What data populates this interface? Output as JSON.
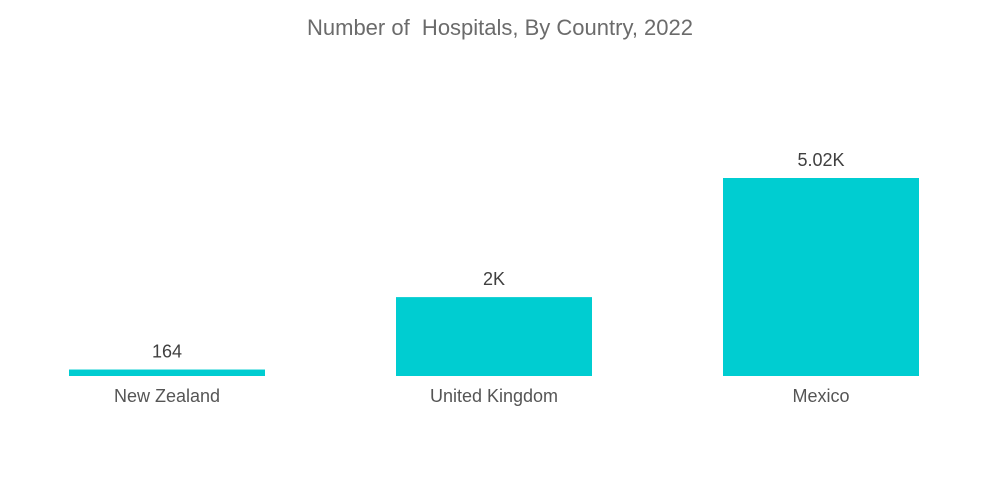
{
  "chart_data": {
    "type": "bar",
    "title": "Number of  Hospitals, By Country, 2022",
    "categories": [
      "New Zealand",
      "United Kingdom",
      "Mexico"
    ],
    "values": [
      164,
      2000,
      5020
    ],
    "value_labels": [
      "164",
      "2K",
      "5.02K"
    ],
    "xlabel": "",
    "ylabel": "",
    "ylim": [
      0,
      5020
    ],
    "grid": false,
    "legend": "none",
    "bar_color": "#00CDD1"
  }
}
